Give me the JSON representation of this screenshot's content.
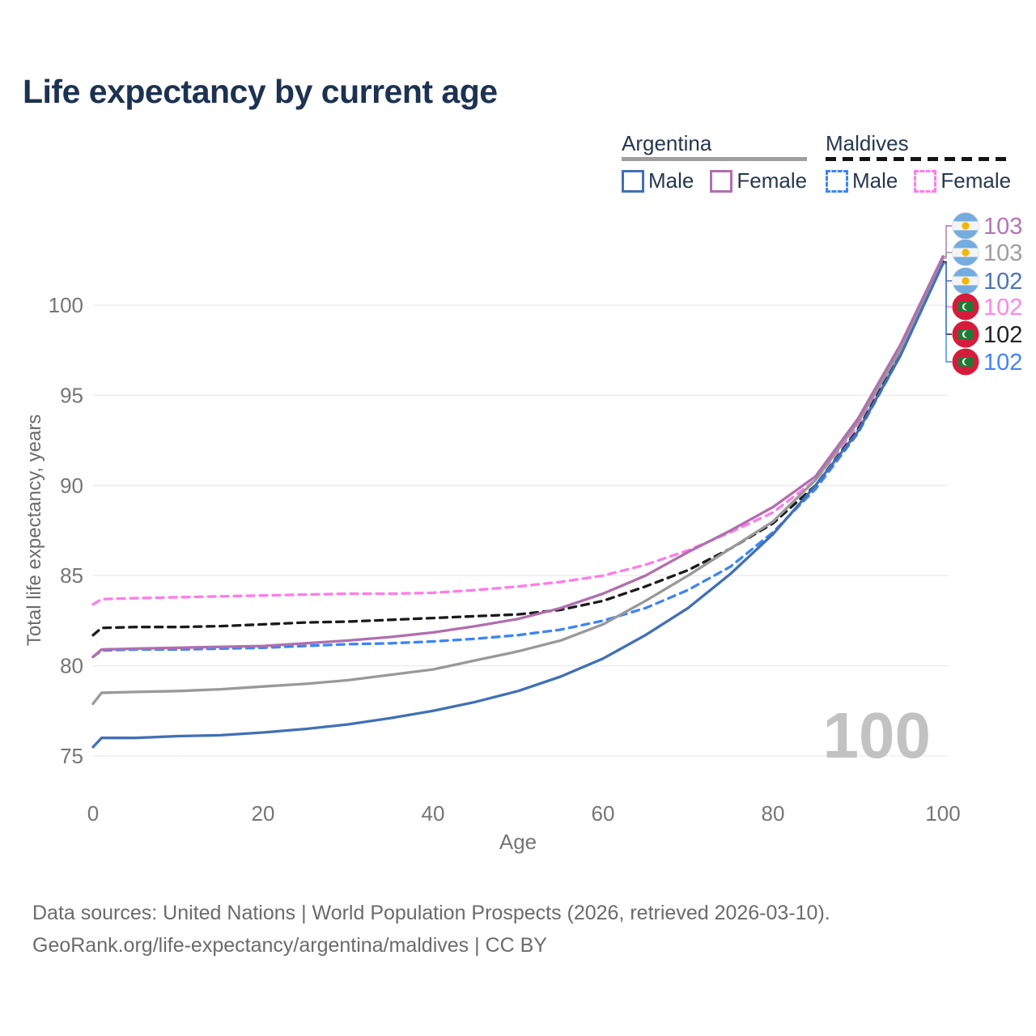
{
  "title": "Life expectancy by current age",
  "legend": {
    "groups": [
      {
        "label": "Argentina",
        "line_style": "solid",
        "underline_color": "#9e9e9e",
        "items": [
          {
            "label": "Male",
            "color": "#4170b5"
          },
          {
            "label": "Female",
            "color": "#b06fae"
          }
        ]
      },
      {
        "label": "Maldives",
        "line_style": "dashed",
        "underline_color": "#141414",
        "items": [
          {
            "label": "Male",
            "color": "#3d85f4"
          },
          {
            "label": "Female",
            "color": "#ff7ce8"
          }
        ]
      }
    ]
  },
  "chart_data": {
    "type": "line",
    "title": "Life expectancy by current age",
    "xlabel": "Age",
    "ylabel": "Total life expectancy, years",
    "x_ticks": [
      0,
      20,
      40,
      60,
      80,
      100
    ],
    "y_ticks": [
      75,
      80,
      85,
      90,
      95,
      100
    ],
    "xlim": [
      0,
      100
    ],
    "ylim": [
      74.5,
      103.5
    ],
    "grid": true,
    "watermark_age": "100",
    "x": [
      0,
      1,
      5,
      10,
      15,
      20,
      25,
      30,
      35,
      40,
      45,
      50,
      55,
      60,
      65,
      70,
      75,
      80,
      85,
      90,
      95,
      100
    ],
    "series": [
      {
        "name": "argentina-female",
        "country": "argentina",
        "sex": "Female",
        "color": "#b06fae",
        "dashed": false,
        "end_label": "103",
        "end_label_color": "#b573b5",
        "values": [
          80.5,
          80.9,
          80.95,
          81.0,
          81.05,
          81.1,
          81.25,
          81.4,
          81.6,
          81.85,
          82.2,
          82.6,
          83.2,
          84.0,
          85.0,
          86.3,
          87.5,
          88.8,
          90.5,
          93.7,
          97.8,
          102.7
        ]
      },
      {
        "name": "argentina-total",
        "country": "argentina",
        "sex": "Both",
        "color": "#999999",
        "dashed": false,
        "end_label": "103",
        "end_label_color": "#9e9e9e",
        "values": [
          77.9,
          78.5,
          78.55,
          78.6,
          78.7,
          78.85,
          79.0,
          79.2,
          79.5,
          79.8,
          80.3,
          80.8,
          81.4,
          82.3,
          83.6,
          85.0,
          86.5,
          88.0,
          90.3,
          93.5,
          97.5,
          102.6
        ]
      },
      {
        "name": "argentina-male",
        "country": "argentina",
        "sex": "Male",
        "color": "#4170b5",
        "dashed": false,
        "end_label": "102",
        "end_label_color": "#4a74b9",
        "values": [
          75.5,
          76.0,
          76.0,
          76.1,
          76.15,
          76.3,
          76.5,
          76.75,
          77.1,
          77.5,
          78.0,
          78.6,
          79.4,
          80.4,
          81.7,
          83.2,
          85.1,
          87.3,
          90.0,
          93.0,
          97.2,
          102.3
        ]
      },
      {
        "name": "maldives-female",
        "country": "maldives",
        "sex": "Female",
        "color": "#ff7ce8",
        "dashed": true,
        "end_label": "102",
        "end_label_color": "#ff85ea",
        "values": [
          83.4,
          83.7,
          83.75,
          83.8,
          83.85,
          83.9,
          83.95,
          84.0,
          84.0,
          84.05,
          84.2,
          84.4,
          84.65,
          85.0,
          85.6,
          86.4,
          87.4,
          88.5,
          90.3,
          93.3,
          97.5,
          102.4
        ]
      },
      {
        "name": "maldives-total",
        "country": "maldives",
        "sex": "Both",
        "color": "#1a1a1a",
        "dashed": true,
        "end_label": "102",
        "end_label_color": "#202124",
        "values": [
          81.7,
          82.1,
          82.15,
          82.15,
          82.2,
          82.3,
          82.4,
          82.45,
          82.55,
          82.65,
          82.75,
          82.85,
          83.1,
          83.6,
          84.4,
          85.3,
          86.5,
          87.9,
          90.0,
          93.1,
          97.3,
          102.4
        ]
      },
      {
        "name": "maldives-male",
        "country": "maldives",
        "sex": "Male",
        "color": "#3d85f4",
        "dashed": true,
        "end_label": "102",
        "end_label_color": "#4285f4",
        "values": [
          80.5,
          80.85,
          80.9,
          80.9,
          80.95,
          81.0,
          81.1,
          81.2,
          81.25,
          81.35,
          81.5,
          81.7,
          82.0,
          82.5,
          83.2,
          84.2,
          85.5,
          87.4,
          89.8,
          92.9,
          97.2,
          102.3
        ]
      }
    ],
    "flag_colors": {
      "argentina": {
        "band": "#74acdf",
        "white": "#f4f4f4",
        "sun": "#f2b705"
      },
      "maldives": {
        "red": "#d51c3c",
        "green": "#1e7a35",
        "crescent": "#ffffff"
      }
    }
  },
  "footer": {
    "line1": "Data sources: United Nations | World Population Prospects (2026, retrieved 2026-03-10).",
    "line2": "GeoRank.org/life-expectancy/argentina/maldives | CC BY"
  }
}
